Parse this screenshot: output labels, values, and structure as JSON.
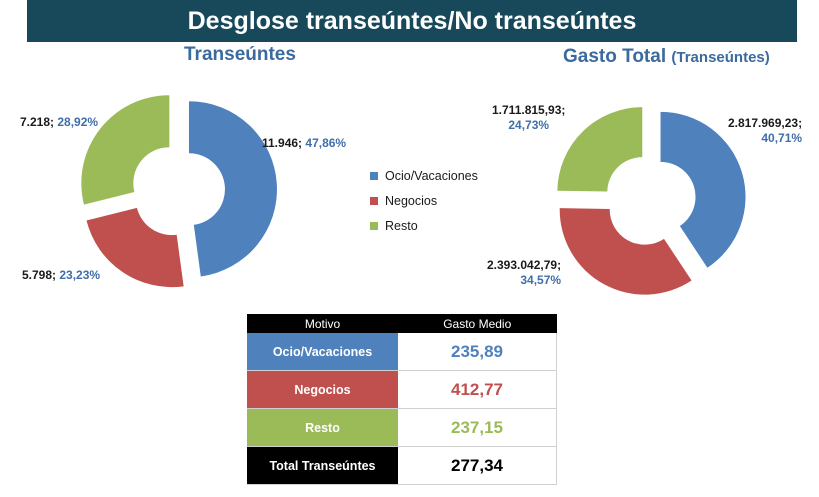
{
  "title": "Desglose transeúntes/No transeúntes",
  "colors": {
    "ocio": "#4f81bd",
    "negocios": "#c0504d",
    "resto": "#9bbb59",
    "total": "#000000"
  },
  "legend": [
    {
      "label": "Ocio/Vacaciones",
      "color": "#4f81bd"
    },
    {
      "label": "Negocios",
      "color": "#c0504d"
    },
    {
      "label": "Resto",
      "color": "#9bbb59"
    }
  ],
  "chart_data": [
    {
      "type": "pie",
      "variant": "donut-exploded",
      "title": "Transeúntes",
      "categories": [
        "Ocio/Vacaciones",
        "Negocios",
        "Resto"
      ],
      "values": [
        11946,
        5798,
        7218
      ],
      "value_labels": [
        "11.946;",
        "5.798;",
        "7.218;"
      ],
      "percent_labels": [
        "47,86%",
        "23,23%",
        "28,92%"
      ]
    },
    {
      "type": "pie",
      "variant": "donut-exploded",
      "title": "Gasto Total",
      "subtitle": "(Transeúntes)",
      "categories": [
        "Ocio/Vacaciones",
        "Negocios",
        "Resto"
      ],
      "values": [
        2817969.23,
        2393042.79,
        1711815.93
      ],
      "value_labels": [
        "2.817.969,23;",
        "2.393.042,79;",
        "1.711.815,93;"
      ],
      "percent_labels": [
        "40,71%",
        "34,57%",
        "24,73%"
      ]
    },
    {
      "type": "table",
      "columns": [
        "Motivo",
        "Gasto Medio"
      ],
      "rows": [
        {
          "motivo": "Ocio/Vacaciones",
          "gasto": "235,89",
          "color": "#4f81bd",
          "text_color": "#4f81bd"
        },
        {
          "motivo": "Negocios",
          "gasto": "412,77",
          "color": "#c0504d",
          "text_color": "#c0504d"
        },
        {
          "motivo": "Resto",
          "gasto": "237,15",
          "color": "#9bbb59",
          "text_color": "#9bbb59"
        },
        {
          "motivo": "Total Transeúntes",
          "gasto": "277,34",
          "color": "#000000",
          "text_color": "#000000"
        }
      ]
    }
  ]
}
